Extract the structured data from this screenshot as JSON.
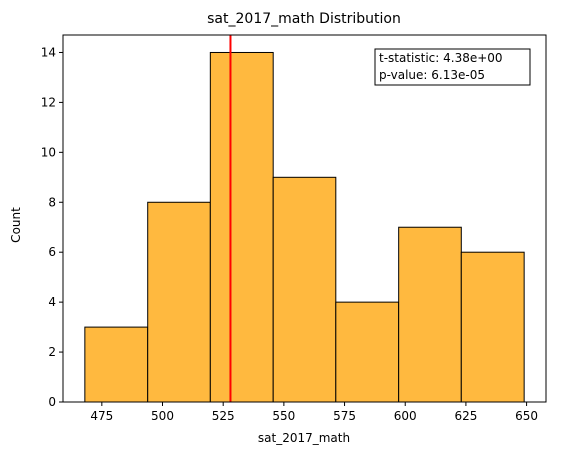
{
  "chart_data": {
    "type": "bar",
    "title": "sat_2017_math Distribution",
    "xlabel": "sat_2017_math",
    "ylabel": "Count",
    "bin_edges": [
      468,
      493.9,
      519.7,
      545.6,
      571.4,
      597.3,
      623.1,
      649
    ],
    "values": [
      3,
      8,
      14,
      9,
      4,
      7,
      6
    ],
    "xlim": [
      459,
      658
    ],
    "ylim": [
      0,
      14.7
    ],
    "xticks": [
      475,
      500,
      525,
      550,
      575,
      600,
      625,
      650
    ],
    "yticks": [
      0,
      2,
      4,
      6,
      8,
      10,
      12,
      14
    ],
    "vline_x": 528,
    "bar_color": "#FFB93F",
    "bar_edge_color": "#000000",
    "vline_color": "#FF0000",
    "grid": false,
    "annotation": {
      "lines": [
        "t-statistic:  4.38e+00",
        "p-value:  6.13e-05"
      ],
      "placement": "top-right"
    }
  }
}
